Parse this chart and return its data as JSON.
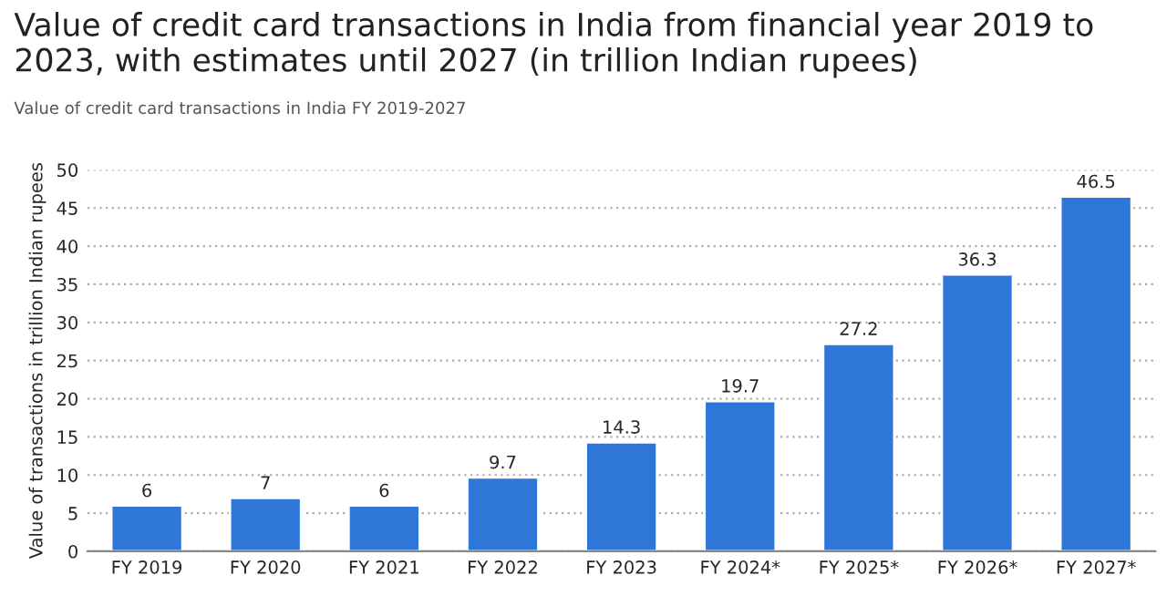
{
  "chart_data": {
    "type": "bar",
    "title": "Value of credit card transactions in India from financial year 2019 to 2023, with estimates until 2027 (in trillion Indian rupees)",
    "subtitle": "Value of credit card transactions in India FY 2019-2027",
    "ylabel": "Value of transactions in trillion Indian rupees",
    "categories": [
      "FY 2019",
      "FY 2020",
      "FY 2021",
      "FY 2022",
      "FY 2023",
      "FY 2024*",
      "FY 2025*",
      "FY 2026*",
      "FY 2027*"
    ],
    "values": [
      6,
      7,
      6,
      9.7,
      14.3,
      19.7,
      27.2,
      36.3,
      46.5
    ],
    "color": "#2f76d9",
    "ylim": [
      0,
      50
    ],
    "yticks": [
      0,
      5,
      10,
      15,
      20,
      25,
      30,
      35,
      40,
      45,
      50
    ],
    "grid": "y",
    "data_labels": true
  }
}
